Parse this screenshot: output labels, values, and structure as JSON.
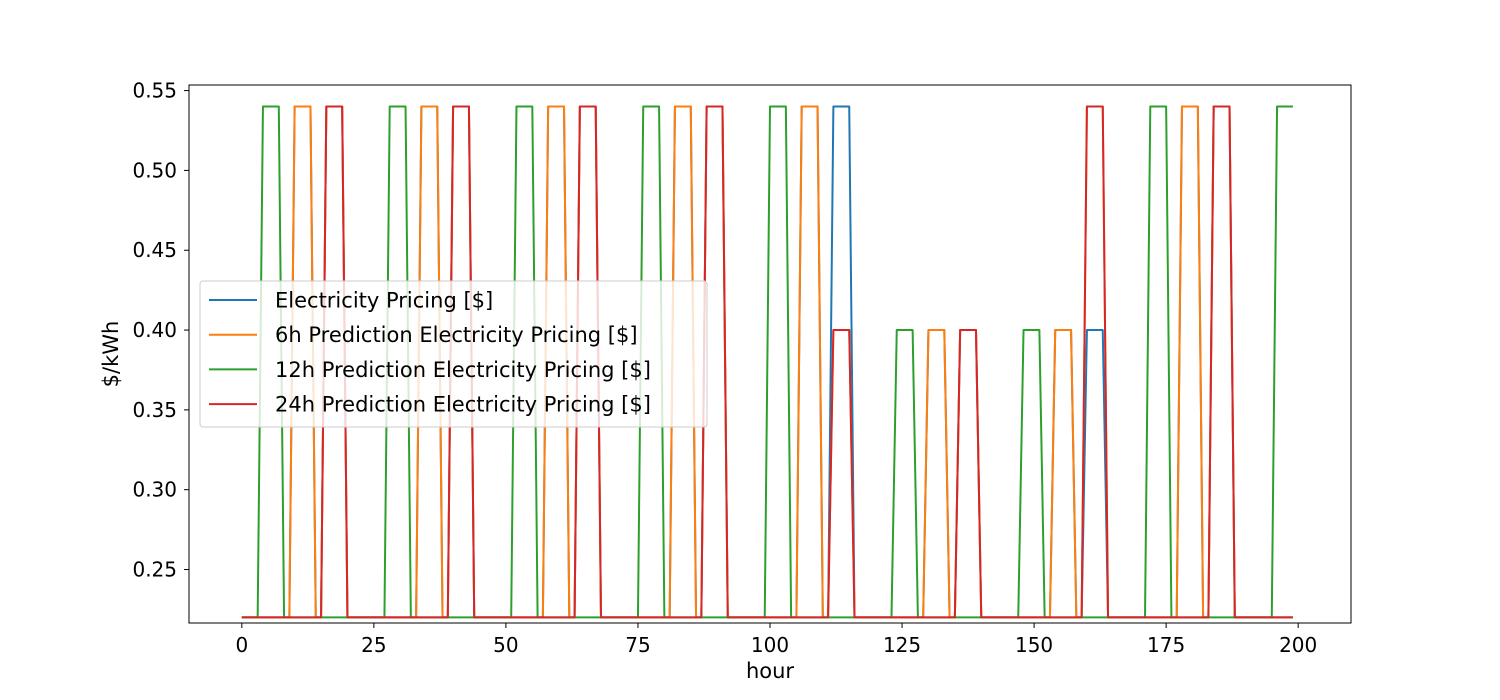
{
  "chart_data": {
    "type": "line",
    "title": "",
    "xlabel": "hour",
    "ylabel": "$/kWh",
    "xlim": [
      -10,
      210
    ],
    "ylim": [
      0.2165,
      0.5535
    ],
    "xticks": [
      0,
      25,
      50,
      75,
      100,
      125,
      150,
      175,
      200
    ],
    "yticks": [
      0.25,
      0.3,
      0.35,
      0.4,
      0.45,
      0.5,
      0.55
    ],
    "grid": false,
    "legend_position": "center-left",
    "low_price": 0.22,
    "x_range": [
      0,
      199
    ],
    "series": [
      {
        "name": "Electricity Pricing [$]",
        "color": "#1f77b4",
        "pulses": [
          [
            10,
            13,
            0.54
          ],
          [
            16,
            19,
            0.54
          ],
          [
            34,
            37,
            0.54
          ],
          [
            40,
            43,
            0.54
          ],
          [
            58,
            61,
            0.54
          ],
          [
            64,
            67,
            0.54
          ],
          [
            82,
            85,
            0.54
          ],
          [
            88,
            91,
            0.54
          ],
          [
            106,
            109,
            0.54
          ],
          [
            112,
            115,
            0.54
          ],
          [
            130,
            133,
            0.4
          ],
          [
            136,
            139,
            0.4
          ],
          [
            154,
            157,
            0.4
          ],
          [
            160,
            163,
            0.4
          ],
          [
            178,
            181,
            0.54
          ],
          [
            184,
            187,
            0.54
          ]
        ]
      },
      {
        "name": "6h Prediction Electricity Pricing [$]",
        "color": "#ff7f0e",
        "pulses": [
          [
            10,
            13,
            0.54
          ],
          [
            16,
            19,
            0.54
          ],
          [
            34,
            37,
            0.54
          ],
          [
            40,
            43,
            0.54
          ],
          [
            58,
            61,
            0.54
          ],
          [
            64,
            67,
            0.54
          ],
          [
            82,
            85,
            0.54
          ],
          [
            88,
            91,
            0.54
          ],
          [
            106,
            109,
            0.54
          ],
          [
            112,
            115,
            0.4
          ],
          [
            130,
            133,
            0.4
          ],
          [
            136,
            139,
            0.4
          ],
          [
            154,
            157,
            0.4
          ],
          [
            160,
            163,
            0.54
          ],
          [
            178,
            181,
            0.54
          ],
          [
            184,
            187,
            0.54
          ]
        ]
      },
      {
        "name": "12h Prediction Electricity Pricing [$]",
        "color": "#2ca02c",
        "pulses": [
          [
            4,
            7,
            0.54
          ],
          [
            28,
            31,
            0.54
          ],
          [
            52,
            55,
            0.54
          ],
          [
            76,
            79,
            0.54
          ],
          [
            100,
            103,
            0.54
          ],
          [
            124,
            127,
            0.4
          ],
          [
            148,
            151,
            0.4
          ],
          [
            172,
            175,
            0.54
          ],
          [
            196,
            199,
            0.54
          ]
        ]
      },
      {
        "name": "24h Prediction Electricity Pricing [$]",
        "color": "#d62728",
        "pulses": [
          [
            16,
            19,
            0.54
          ],
          [
            40,
            43,
            0.54
          ],
          [
            64,
            67,
            0.54
          ],
          [
            88,
            91,
            0.54
          ],
          [
            112,
            115,
            0.4
          ],
          [
            136,
            139,
            0.4
          ],
          [
            160,
            163,
            0.54
          ],
          [
            184,
            187,
            0.54
          ]
        ]
      }
    ]
  }
}
